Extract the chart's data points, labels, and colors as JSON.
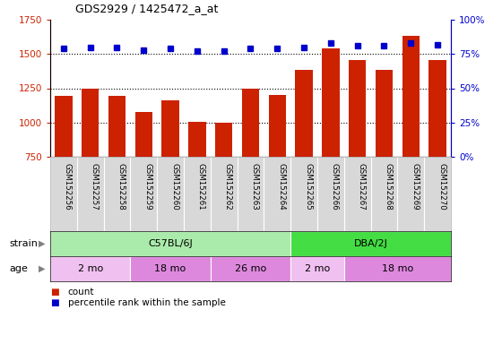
{
  "title": "GDS2929 / 1425472_a_at",
  "samples": [
    "GSM152256",
    "GSM152257",
    "GSM152258",
    "GSM152259",
    "GSM152260",
    "GSM152261",
    "GSM152262",
    "GSM152263",
    "GSM152264",
    "GSM152265",
    "GSM152266",
    "GSM152267",
    "GSM152268",
    "GSM152269",
    "GSM152270"
  ],
  "counts": [
    1195,
    1248,
    1195,
    1075,
    1165,
    1005,
    998,
    1248,
    1200,
    1385,
    1540,
    1455,
    1385,
    1635,
    1455
  ],
  "percentile_ranks": [
    79,
    80,
    80,
    78,
    79,
    77,
    77,
    79,
    79,
    80,
    83,
    81,
    81,
    83,
    82
  ],
  "ylim_left": [
    750,
    1750
  ],
  "ylim_right": [
    0,
    100
  ],
  "yticks_left": [
    750,
    1000,
    1250,
    1500,
    1750
  ],
  "yticks_right": [
    0,
    25,
    50,
    75,
    100
  ],
  "bar_color": "#cc2200",
  "dot_color": "#0000cc",
  "strain_groups": [
    {
      "label": "C57BL/6J",
      "start": 0,
      "end": 9,
      "color": "#aaeaaa"
    },
    {
      "label": "DBA/2J",
      "start": 9,
      "end": 15,
      "color": "#44dd44"
    }
  ],
  "age_groups": [
    {
      "label": "2 mo",
      "start": 0,
      "end": 3,
      "color": "#f0c0f0"
    },
    {
      "label": "18 mo",
      "start": 3,
      "end": 6,
      "color": "#dd88dd"
    },
    {
      "label": "26 mo",
      "start": 6,
      "end": 9,
      "color": "#dd88dd"
    },
    {
      "label": "2 mo",
      "start": 9,
      "end": 11,
      "color": "#f0c0f0"
    },
    {
      "label": "18 mo",
      "start": 11,
      "end": 15,
      "color": "#dd88dd"
    }
  ]
}
